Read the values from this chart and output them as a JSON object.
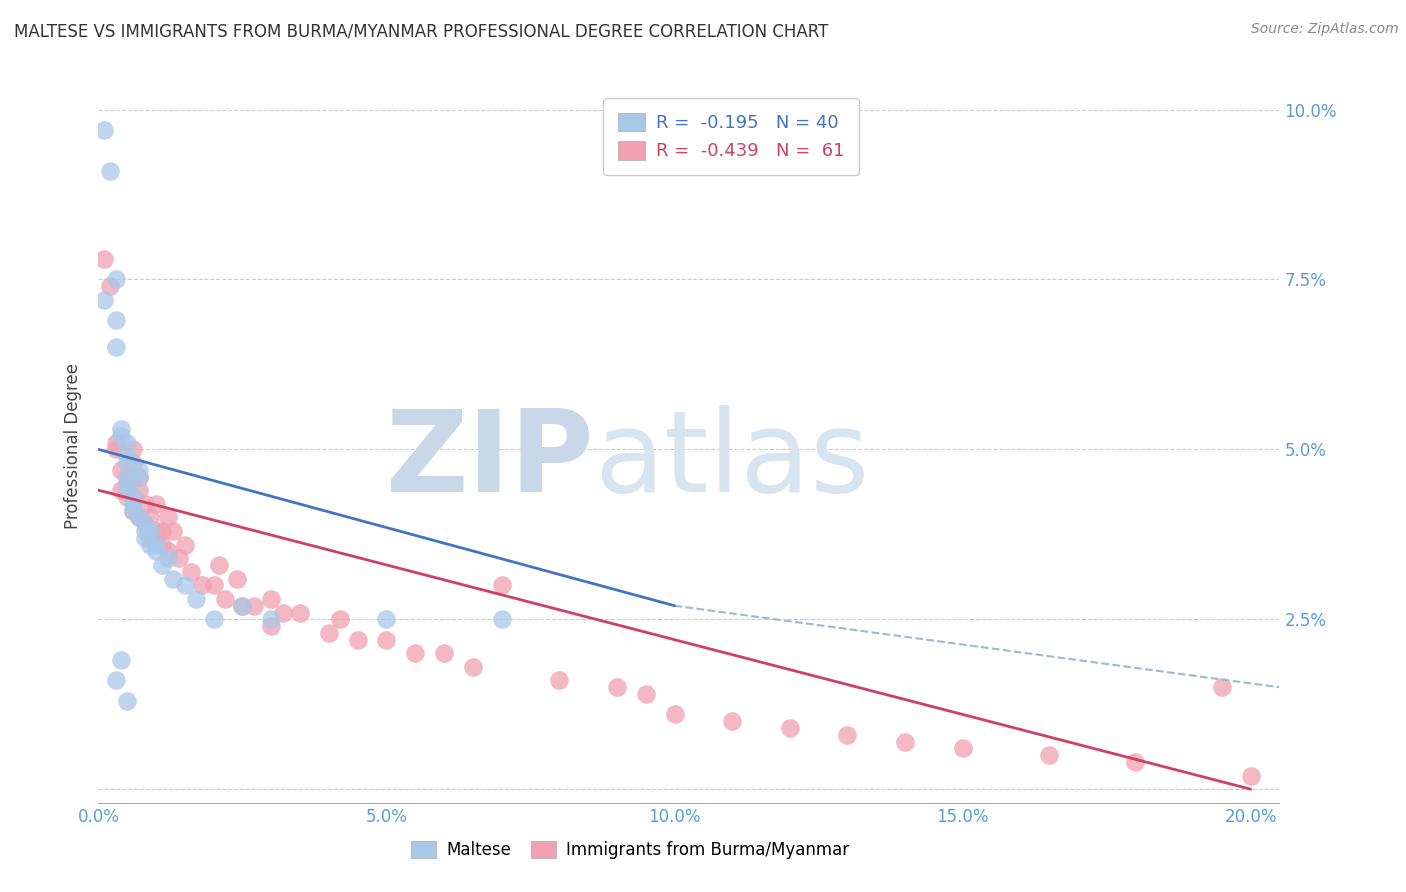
{
  "title": "MALTESE VS IMMIGRANTS FROM BURMA/MYANMAR PROFESSIONAL DEGREE CORRELATION CHART",
  "source": "Source: ZipAtlas.com",
  "ylabel": "Professional Degree",
  "blue_R": -0.195,
  "blue_N": 40,
  "pink_R": -0.439,
  "pink_N": 61,
  "blue_color": "#a8c8e8",
  "pink_color": "#f0a0b0",
  "blue_line_color": "#4472c4",
  "pink_line_color": "#d04060",
  "dashed_line_color": "#99bbcc",
  "watermark_zip": "ZIP",
  "watermark_atlas": "atlas",
  "watermark_color": "#c8d8e8",
  "legend_label_blue": "Maltese",
  "legend_label_pink": "Immigrants from Burma/Myanmar",
  "xlim": [
    0.0,
    0.205
  ],
  "ylim": [
    -0.002,
    0.103
  ],
  "blue_line_x0": 0.0,
  "blue_line_y0": 0.05,
  "blue_line_x1": 0.1,
  "blue_line_y1": 0.027,
  "pink_line_x0": 0.0,
  "pink_line_y0": 0.044,
  "pink_line_x1": 0.2,
  "pink_line_y1": 0.0,
  "dash_line_x0": 0.1,
  "dash_line_y0": 0.027,
  "dash_line_x1": 0.205,
  "dash_line_y1": 0.015,
  "blue_x": [
    0.001,
    0.002,
    0.003,
    0.003,
    0.003,
    0.004,
    0.004,
    0.005,
    0.005,
    0.005,
    0.005,
    0.005,
    0.005,
    0.006,
    0.006,
    0.006,
    0.007,
    0.007,
    0.007,
    0.008,
    0.008,
    0.008,
    0.009,
    0.009,
    0.01,
    0.01,
    0.011,
    0.012,
    0.013,
    0.015,
    0.017,
    0.02,
    0.025,
    0.03,
    0.05,
    0.07,
    0.004,
    0.003,
    0.005,
    0.001
  ],
  "blue_y": [
    0.097,
    0.091,
    0.075,
    0.069,
    0.065,
    0.053,
    0.052,
    0.051,
    0.049,
    0.048,
    0.046,
    0.045,
    0.044,
    0.043,
    0.042,
    0.041,
    0.047,
    0.046,
    0.04,
    0.039,
    0.038,
    0.037,
    0.038,
    0.036,
    0.036,
    0.035,
    0.033,
    0.034,
    0.031,
    0.03,
    0.028,
    0.025,
    0.027,
    0.025,
    0.025,
    0.025,
    0.019,
    0.016,
    0.013,
    0.072
  ],
  "pink_x": [
    0.001,
    0.002,
    0.003,
    0.003,
    0.004,
    0.004,
    0.005,
    0.005,
    0.005,
    0.006,
    0.006,
    0.006,
    0.007,
    0.007,
    0.007,
    0.008,
    0.008,
    0.009,
    0.009,
    0.01,
    0.01,
    0.011,
    0.011,
    0.012,
    0.012,
    0.013,
    0.014,
    0.015,
    0.016,
    0.018,
    0.02,
    0.021,
    0.022,
    0.024,
    0.025,
    0.027,
    0.03,
    0.03,
    0.032,
    0.035,
    0.04,
    0.042,
    0.045,
    0.05,
    0.055,
    0.06,
    0.065,
    0.07,
    0.08,
    0.09,
    0.095,
    0.1,
    0.11,
    0.12,
    0.13,
    0.14,
    0.15,
    0.165,
    0.18,
    0.195,
    0.2
  ],
  "pink_y": [
    0.078,
    0.074,
    0.051,
    0.05,
    0.047,
    0.044,
    0.046,
    0.044,
    0.043,
    0.05,
    0.048,
    0.041,
    0.046,
    0.044,
    0.04,
    0.042,
    0.039,
    0.04,
    0.037,
    0.042,
    0.038,
    0.038,
    0.036,
    0.04,
    0.035,
    0.038,
    0.034,
    0.036,
    0.032,
    0.03,
    0.03,
    0.033,
    0.028,
    0.031,
    0.027,
    0.027,
    0.028,
    0.024,
    0.026,
    0.026,
    0.023,
    0.025,
    0.022,
    0.022,
    0.02,
    0.02,
    0.018,
    0.03,
    0.016,
    0.015,
    0.014,
    0.011,
    0.01,
    0.009,
    0.008,
    0.007,
    0.006,
    0.005,
    0.004,
    0.015,
    0.002
  ]
}
